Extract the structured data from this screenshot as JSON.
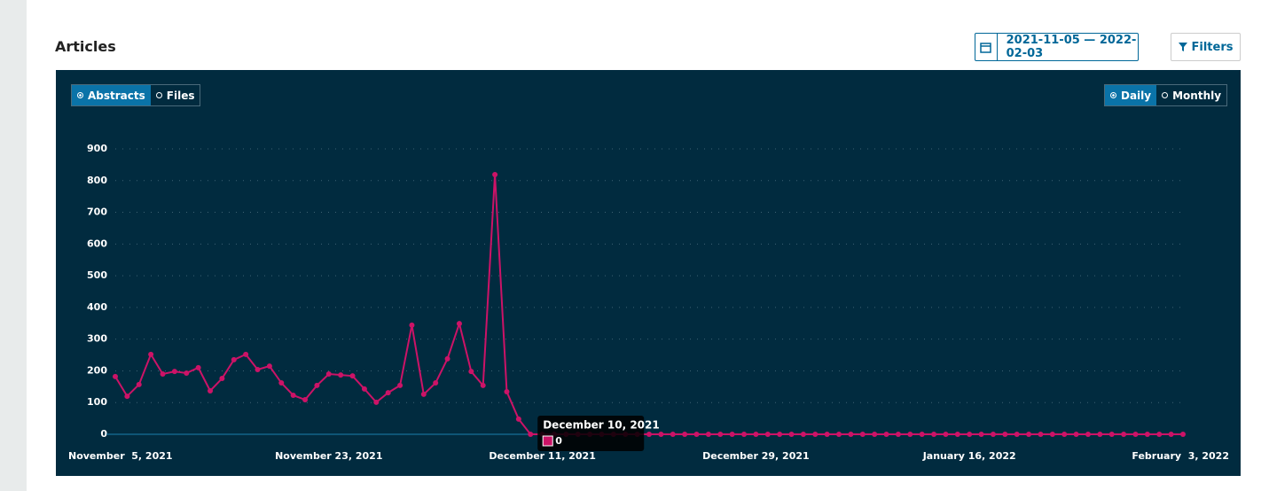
{
  "header": {
    "title": "Articles",
    "date_range": "2021-11-05 — 2022-02-03",
    "filters": "Filters"
  },
  "toggles": {
    "metric": [
      "Abstracts",
      "Files"
    ],
    "period": [
      "Daily",
      "Monthly"
    ]
  },
  "tooltip": {
    "title": "December 10, 2021",
    "value": 0
  },
  "chart_data": {
    "type": "line",
    "color": "#cc1367",
    "grid": true,
    "x": [
      "2021-11-05",
      "2021-11-06",
      "2021-11-07",
      "2021-11-08",
      "2021-11-09",
      "2021-11-10",
      "2021-11-11",
      "2021-11-12",
      "2021-11-13",
      "2021-11-14",
      "2021-11-15",
      "2021-11-16",
      "2021-11-17",
      "2021-11-18",
      "2021-11-19",
      "2021-11-20",
      "2021-11-21",
      "2021-11-22",
      "2021-11-23",
      "2021-11-24",
      "2021-11-25",
      "2021-11-26",
      "2021-11-27",
      "2021-11-28",
      "2021-11-29",
      "2021-11-30",
      "2021-12-01",
      "2021-12-02",
      "2021-12-03",
      "2021-12-04",
      "2021-12-05",
      "2021-12-06",
      "2021-12-07",
      "2021-12-08",
      "2021-12-09",
      "2021-12-10",
      "2021-12-11",
      "2021-12-12",
      "2021-12-13",
      "2021-12-14",
      "2021-12-15",
      "2021-12-16",
      "2021-12-17",
      "2021-12-18",
      "2021-12-19",
      "2021-12-20",
      "2021-12-21",
      "2021-12-22",
      "2021-12-23",
      "2021-12-24",
      "2021-12-25",
      "2021-12-26",
      "2021-12-27",
      "2021-12-28",
      "2021-12-29",
      "2021-12-30",
      "2021-12-31",
      "2022-01-01",
      "2022-01-02",
      "2022-01-03",
      "2022-01-04",
      "2022-01-05",
      "2022-01-06",
      "2022-01-07",
      "2022-01-08",
      "2022-01-09",
      "2022-01-10",
      "2022-01-11",
      "2022-01-12",
      "2022-01-13",
      "2022-01-14",
      "2022-01-15",
      "2022-01-16",
      "2022-01-17",
      "2022-01-18",
      "2022-01-19",
      "2022-01-20",
      "2022-01-21",
      "2022-01-22",
      "2022-01-23",
      "2022-01-24",
      "2022-01-25",
      "2022-01-26",
      "2022-01-27",
      "2022-01-28",
      "2022-01-29",
      "2022-01-30",
      "2022-01-31",
      "2022-02-01",
      "2022-02-02",
      "2022-02-03"
    ],
    "values": [
      182,
      120,
      157,
      252,
      190,
      198,
      193,
      210,
      137,
      176,
      235,
      252,
      204,
      215,
      162,
      123,
      109,
      154,
      190,
      187,
      184,
      143,
      101,
      131,
      154,
      344,
      126,
      162,
      238,
      349,
      198,
      154,
      819,
      134,
      48,
      0,
      0,
      0,
      0,
      0,
      0,
      0,
      0,
      0,
      0,
      0,
      0,
      0,
      0,
      0,
      0,
      0,
      0,
      0,
      0,
      0,
      0,
      0,
      0,
      0,
      0,
      0,
      0,
      0,
      0,
      0,
      0,
      0,
      0,
      0,
      0,
      0,
      0,
      0,
      0,
      0,
      0,
      0,
      0,
      0,
      0,
      0,
      0,
      0,
      0,
      0,
      0,
      0,
      0,
      0,
      0
    ],
    "ylim": [
      0,
      900
    ],
    "yticks": [
      0,
      100,
      200,
      300,
      400,
      500,
      600,
      700,
      800,
      900
    ],
    "xticks": [
      {
        "value": "2021-11-05",
        "label": "November  5, 2021"
      },
      {
        "value": "2021-11-23",
        "label": "November 23, 2021"
      },
      {
        "value": "2021-12-11",
        "label": "December 11, 2021"
      },
      {
        "value": "2021-12-29",
        "label": "December 29, 2021"
      },
      {
        "value": "2022-01-16",
        "label": "January 16, 2022"
      },
      {
        "value": "2022-02-03",
        "label": "February  3, 2022"
      }
    ]
  }
}
